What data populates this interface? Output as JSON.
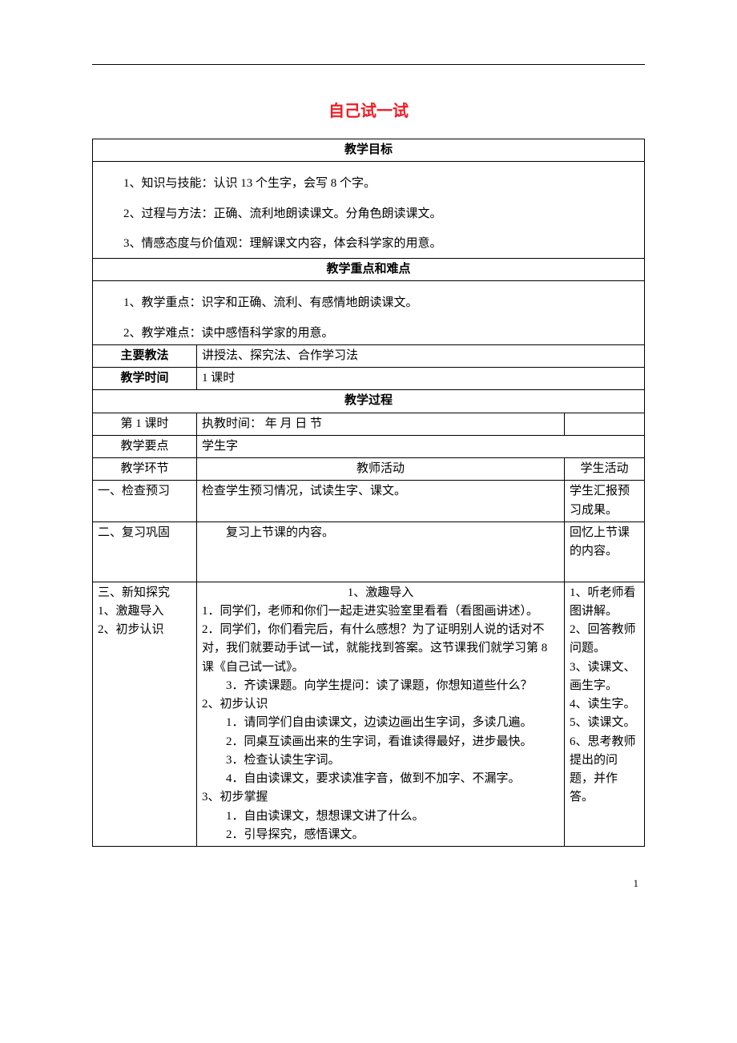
{
  "title": "自己试一试",
  "sections": {
    "goals_header": "教学目标",
    "goals": [
      "1、知识与技能：认识 13 个生字，会写 8 个字。",
      "2、过程与方法：正确、流利地朗读课文。分角色朗读课文。",
      "3、情感态度与价值观：理解课文内容，体会科学家的用意。"
    ],
    "keypoints_header": "教学重点和难点",
    "keypoints": [
      "1、教学重点：识字和正确、流利、有感情地朗读课文。",
      "2、教学难点：读中感悟科学家的用意。"
    ],
    "method_label": "主要教法",
    "method_value": "讲授法、探究法、合作学习法",
    "time_label": "教学时间",
    "time_value": "1 课时",
    "process_header": "教学过程",
    "lesson_label": "第 1 课时",
    "lesson_value": "执教时间：        年      月      日      节",
    "focus_label": "教学要点",
    "focus_value": "学生字",
    "stage_label": "教学环节",
    "teacher_label": "教师活动",
    "student_label": "学生活动"
  },
  "stages": {
    "s1": {
      "label": "一、检查预习",
      "teacher": "检查学生预习情况，试读生字、课文。",
      "student": "学生汇报预习成果。"
    },
    "s2": {
      "label": "二、复习巩固",
      "teacher": "复习上节课的内容。",
      "student": "回忆上节课的内容。"
    },
    "s3": {
      "stage_lines": [
        "三、新知探究",
        "1、激趣导入",
        " ",
        " ",
        " ",
        " ",
        " ",
        " ",
        "2、初步认识"
      ],
      "teacher_lines": [
        {
          "cls": "activity-center",
          "text": "1、激趣导入"
        },
        {
          "cls": "",
          "text": "1．同学们，老师和你们一起走进实验室里看看（看图画讲述）。"
        },
        {
          "cls": "",
          "text": "2．同学们，你们看完后，有什么感想？为了证明别人说的话对不对，我们就要动手试一试，就能找到答案。这节课我们就学习第 8 课《自己试一试》。"
        },
        {
          "cls": "indent1",
          "text": "3．齐读课题。向学生提问：读了课题，你想知道些什么？"
        },
        {
          "cls": "",
          "text": "2、初步认识"
        },
        {
          "cls": "indent1",
          "text": "1．请同学们自由读课文，边读边画出生字词，多读几遍。"
        },
        {
          "cls": "indent1",
          "text": "2．同桌互读画出来的生字词，看谁读得最好，进步最快。"
        },
        {
          "cls": "indent1",
          "text": "3．检查认读生字词。"
        },
        {
          "cls": "indent1",
          "text": "4．自由读课文，要求读准字音，做到不加字、不漏字。"
        },
        {
          "cls": "",
          "text": "3、初步掌握"
        },
        {
          "cls": "indent1",
          "text": "1．自由读课文，想想课文讲了什么。"
        },
        {
          "cls": "indent1",
          "text": "2．引导探究，感悟课文。"
        }
      ],
      "student_lines": [
        "1、听老师看图讲解。",
        "2、回答教师问题。",
        " ",
        " ",
        " ",
        " ",
        "3、读课文、画生字。",
        "4、读生字。",
        "5、读课文。",
        "6、思考教师提出的问题，并作答。"
      ]
    }
  },
  "page_number": "1"
}
